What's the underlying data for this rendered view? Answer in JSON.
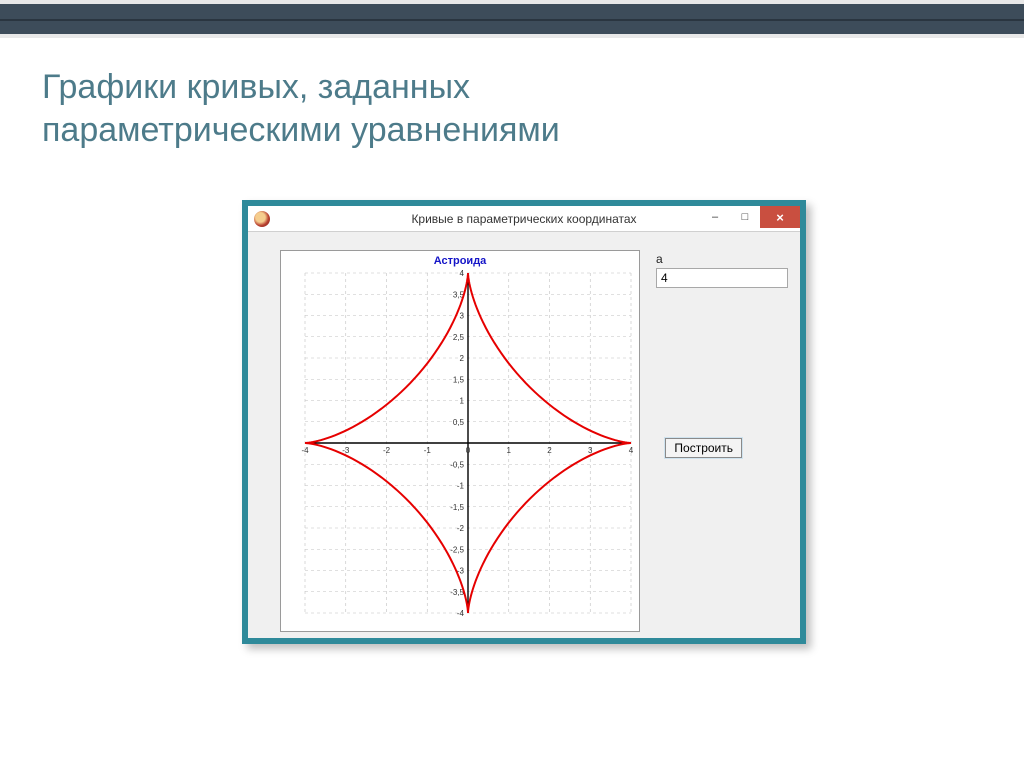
{
  "slide": {
    "title_line1": "Графики кривых, заданных",
    "title_line2": "параметрическими уравнениями",
    "title_color": "#4d7b8a",
    "top_band_color": "#3d4c5a"
  },
  "window": {
    "title": "Кривые в параметрических координатах",
    "frame_color": "#2f8a9a",
    "body_bg": "#f0f0f0",
    "close_color": "#c94f40",
    "minimize_glyph": "–",
    "maximize_glyph": "□",
    "close_glyph": "×"
  },
  "panel": {
    "param_label": "a",
    "param_value": "4",
    "build_label": "Построить"
  },
  "chart": {
    "type": "parametric-line",
    "title": "Астроида",
    "title_color": "#1515c8",
    "title_fontsize": 11,
    "curve_color": "#e60000",
    "curve_width": 2,
    "background_color": "#ffffff",
    "axis_color": "#000000",
    "grid_color": "#c0c0c0",
    "grid_dash": "3,3",
    "xlim": [
      -4,
      4
    ],
    "ylim": [
      -4,
      4
    ],
    "xticks": [
      -4,
      -3,
      -2,
      -1,
      0,
      1,
      2,
      3,
      4
    ],
    "yticks": [
      -4,
      -3.5,
      -3,
      -2.5,
      -2,
      -1.5,
      -1,
      -0.5,
      0,
      0.5,
      1,
      1.5,
      2,
      2.5,
      3,
      3.5,
      4
    ],
    "xtick_labels": [
      "-4",
      "-3",
      "-2",
      "-1",
      "0",
      "1",
      "2",
      "3",
      "4"
    ],
    "ytick_labels": [
      "-4",
      "-3,5",
      "-3",
      "-2,5",
      "-2",
      "-1,5",
      "-1",
      "-0,5",
      "0",
      "0,5",
      "1",
      "1,5",
      "2",
      "2,5",
      "3",
      "3,5",
      "4"
    ],
    "tick_fontsize": 8,
    "tick_color": "#333333",
    "a_param": 4
  }
}
